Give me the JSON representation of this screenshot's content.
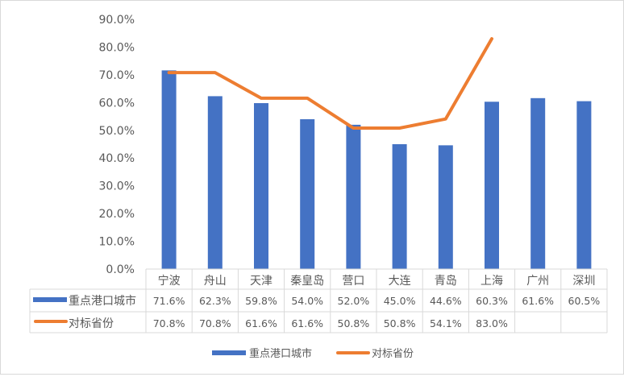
{
  "chart_data": {
    "type": "bar+line",
    "categories": [
      "宁波",
      "舟山",
      "天津",
      "秦皇岛",
      "营口",
      "大连",
      "青岛",
      "上海",
      "广州",
      "深圳"
    ],
    "series": [
      {
        "name": "重点港口城市",
        "kind": "bar",
        "color": "#4472C4",
        "values": [
          71.6,
          62.3,
          59.8,
          54.0,
          52.0,
          45.0,
          44.6,
          60.3,
          61.6,
          60.5
        ]
      },
      {
        "name": "对标省份",
        "kind": "line",
        "color": "#ED7D31",
        "values": [
          70.8,
          70.8,
          61.6,
          61.6,
          50.8,
          50.8,
          54.1,
          83.0,
          null,
          null
        ]
      }
    ],
    "yticks": [
      "0.0%",
      "10.0%",
      "20.0%",
      "30.0%",
      "40.0%",
      "50.0%",
      "60.0%",
      "70.0%",
      "80.0%",
      "90.0%"
    ],
    "ylim": [
      0,
      90
    ],
    "grid": false,
    "data_table": true,
    "legend": "bottom"
  }
}
